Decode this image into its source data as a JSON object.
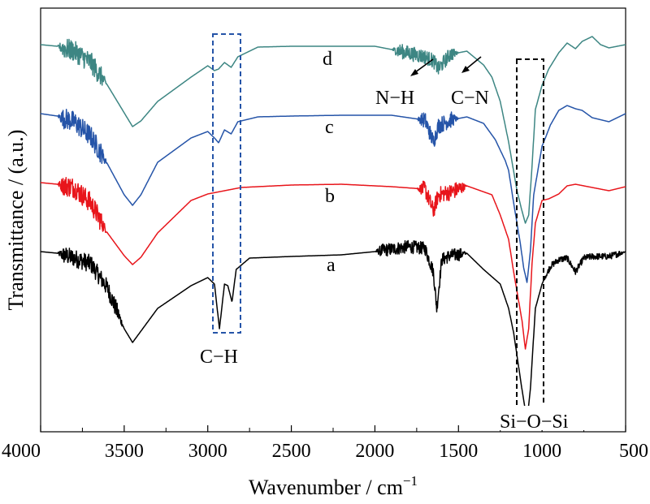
{
  "chart_data": {
    "type": "line",
    "xlabel": "Wavenumber / cm",
    "xlabel_sup": "−1",
    "ylabel": "Transmittance / (a.u.)",
    "xlim": [
      4000,
      500
    ],
    "x_reversed": true,
    "x_ticks": [
      4000,
      3500,
      3000,
      2500,
      2000,
      1500,
      1000,
      500
    ],
    "y_ticks_shown": false,
    "grid": false,
    "series": [
      {
        "name": "a",
        "color": "#000000",
        "offset": 0,
        "noise_ranges": [
          [
            3900,
            3500,
            22
          ],
          [
            2000,
            1450,
            16
          ],
          [
            1000,
            500,
            8
          ]
        ],
        "points": [
          [
            4000,
            0
          ],
          [
            3900,
            -2
          ],
          [
            3800,
            -8
          ],
          [
            3700,
            -15
          ],
          [
            3600,
            -45
          ],
          [
            3500,
            -95
          ],
          [
            3450,
            -112
          ],
          [
            3400,
            -98
          ],
          [
            3300,
            -70
          ],
          [
            3100,
            -42
          ],
          [
            3000,
            -32
          ],
          [
            2960,
            -40
          ],
          [
            2930,
            -95
          ],
          [
            2900,
            -40
          ],
          [
            2880,
            -42
          ],
          [
            2855,
            -62
          ],
          [
            2830,
            -22
          ],
          [
            2750,
            -8
          ],
          [
            2500,
            -6
          ],
          [
            2200,
            -4
          ],
          [
            2000,
            0
          ],
          [
            1800,
            6
          ],
          [
            1700,
            4
          ],
          [
            1650,
            -25
          ],
          [
            1630,
            -70
          ],
          [
            1600,
            -10
          ],
          [
            1550,
            -5
          ],
          [
            1450,
            -2
          ],
          [
            1350,
            -22
          ],
          [
            1250,
            -40
          ],
          [
            1200,
            -70
          ],
          [
            1170,
            -100
          ],
          [
            1120,
            -170
          ],
          [
            1090,
            -208
          ],
          [
            1070,
            -170
          ],
          [
            1040,
            -70
          ],
          [
            1000,
            -40
          ],
          [
            950,
            -18
          ],
          [
            900,
            -10
          ],
          [
            850,
            -8
          ],
          [
            800,
            -25
          ],
          [
            780,
            -18
          ],
          [
            750,
            -8
          ],
          [
            700,
            -6
          ],
          [
            600,
            -6
          ],
          [
            500,
            0
          ]
        ]
      },
      {
        "name": "b",
        "color": "#e8151b",
        "offset": 85,
        "noise_ranges": [
          [
            3900,
            3600,
            26
          ],
          [
            1750,
            1450,
            20
          ]
        ],
        "points": [
          [
            4000,
            0
          ],
          [
            3900,
            -2
          ],
          [
            3800,
            -6
          ],
          [
            3700,
            -25
          ],
          [
            3600,
            -62
          ],
          [
            3500,
            -90
          ],
          [
            3450,
            -101
          ],
          [
            3400,
            -92
          ],
          [
            3300,
            -62
          ],
          [
            3100,
            -22
          ],
          [
            3000,
            -14
          ],
          [
            2800,
            -6
          ],
          [
            2500,
            -3
          ],
          [
            2200,
            -2
          ],
          [
            1900,
            -5
          ],
          [
            1700,
            -8
          ],
          [
            1650,
            -35
          ],
          [
            1620,
            -15
          ],
          [
            1550,
            -12
          ],
          [
            1500,
            -8
          ],
          [
            1450,
            -4
          ],
          [
            1300,
            -15
          ],
          [
            1250,
            -40
          ],
          [
            1200,
            -70
          ],
          [
            1170,
            -110
          ],
          [
            1120,
            -170
          ],
          [
            1100,
            -205
          ],
          [
            1080,
            -180
          ],
          [
            1060,
            -100
          ],
          [
            1040,
            -50
          ],
          [
            1000,
            -22
          ],
          [
            960,
            -20
          ],
          [
            900,
            -14
          ],
          [
            850,
            -4
          ],
          [
            800,
            -2
          ],
          [
            700,
            -6
          ],
          [
            600,
            -10
          ],
          [
            500,
            -5
          ]
        ]
      },
      {
        "name": "c",
        "color": "#2554a8",
        "offset": 170,
        "noise_ranges": [
          [
            3900,
            3600,
            26
          ],
          [
            1750,
            1500,
            20
          ]
        ],
        "points": [
          [
            4000,
            0
          ],
          [
            3900,
            -3
          ],
          [
            3800,
            -10
          ],
          [
            3700,
            -28
          ],
          [
            3600,
            -62
          ],
          [
            3500,
            -100
          ],
          [
            3450,
            -113
          ],
          [
            3400,
            -100
          ],
          [
            3300,
            -60
          ],
          [
            3100,
            -30
          ],
          [
            3000,
            -22
          ],
          [
            2960,
            -30
          ],
          [
            2935,
            -36
          ],
          [
            2900,
            -20
          ],
          [
            2860,
            -25
          ],
          [
            2820,
            -10
          ],
          [
            2700,
            -4
          ],
          [
            2500,
            -3
          ],
          [
            2200,
            -2
          ],
          [
            1900,
            -2
          ],
          [
            1700,
            -8
          ],
          [
            1650,
            -35
          ],
          [
            1620,
            -15
          ],
          [
            1550,
            -8
          ],
          [
            1450,
            -4
          ],
          [
            1350,
            -12
          ],
          [
            1280,
            -32
          ],
          [
            1220,
            -58
          ],
          [
            1200,
            -70
          ],
          [
            1170,
            -110
          ],
          [
            1130,
            -160
          ],
          [
            1110,
            -190
          ],
          [
            1090,
            -208
          ],
          [
            1070,
            -170
          ],
          [
            1050,
            -100
          ],
          [
            1000,
            -40
          ],
          [
            980,
            -30
          ],
          [
            950,
            -14
          ],
          [
            900,
            4
          ],
          [
            850,
            10
          ],
          [
            800,
            6
          ],
          [
            760,
            4
          ],
          [
            700,
            -5
          ],
          [
            600,
            -10
          ],
          [
            500,
            0
          ]
        ]
      },
      {
        "name": "d",
        "color": "#3d8683",
        "offset": 255,
        "noise_ranges": [
          [
            3900,
            3600,
            26
          ],
          [
            1900,
            1500,
            18
          ]
        ],
        "points": [
          [
            4000,
            0
          ],
          [
            3900,
            -2
          ],
          [
            3800,
            -8
          ],
          [
            3700,
            -22
          ],
          [
            3600,
            -50
          ],
          [
            3500,
            -84
          ],
          [
            3450,
            -101
          ],
          [
            3400,
            -94
          ],
          [
            3300,
            -70
          ],
          [
            3100,
            -40
          ],
          [
            3000,
            -26
          ],
          [
            2960,
            -32
          ],
          [
            2935,
            -30
          ],
          [
            2900,
            -22
          ],
          [
            2860,
            -28
          ],
          [
            2820,
            -15
          ],
          [
            2700,
            -3
          ],
          [
            2500,
            -2
          ],
          [
            2200,
            -2
          ],
          [
            2000,
            -2
          ],
          [
            1850,
            -8
          ],
          [
            1700,
            -15
          ],
          [
            1650,
            -20
          ],
          [
            1620,
            -30
          ],
          [
            1550,
            -12
          ],
          [
            1450,
            -8
          ],
          [
            1350,
            -25
          ],
          [
            1300,
            -40
          ],
          [
            1250,
            -70
          ],
          [
            1200,
            -120
          ],
          [
            1150,
            -180
          ],
          [
            1120,
            -205
          ],
          [
            1100,
            -220
          ],
          [
            1080,
            -210
          ],
          [
            1060,
            -150
          ],
          [
            1040,
            -80
          ],
          [
            1000,
            -50
          ],
          [
            960,
            -30
          ],
          [
            900,
            -10
          ],
          [
            850,
            2
          ],
          [
            800,
            -5
          ],
          [
            760,
            4
          ],
          [
            700,
            10
          ],
          [
            650,
            0
          ],
          [
            600,
            -4
          ],
          [
            500,
            0
          ]
        ]
      }
    ],
    "annotations": {
      "ch": "C−H",
      "nh": "N−H",
      "cn": "C−N",
      "sios": "Si−O−Si"
    }
  }
}
